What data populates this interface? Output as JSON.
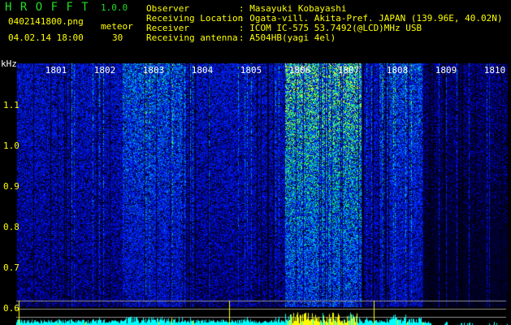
{
  "header": {
    "app_name": "H R O F F T",
    "version": "1.0.0",
    "filename": "0402141800.png",
    "datetime": "04.02.14 18:00",
    "meteor_label": "meteor",
    "meteor_count": "30"
  },
  "info": [
    {
      "label": "Observer",
      "value": ": Masayuki Kobayashi"
    },
    {
      "label": "Receiving Location",
      "value": ": Ogata-vill. Akita-Pref. JAPAN (139.96E, 40.02N)"
    },
    {
      "label": "Receiver",
      "value": ": ICOM IC-575 53.7492(@LCD)MHz USB"
    },
    {
      "label": "Receiving antenna",
      "value": ": A504HB(yagi 4el)"
    }
  ],
  "axis": {
    "y_unit": "kHz",
    "y_ticks": [
      "1.1",
      "1.0",
      "0.9",
      "0.8",
      "0.7",
      "0.6"
    ],
    "x_ticks": [
      "1801",
      "1802",
      "1803",
      "1804",
      "1805",
      "1806",
      "1807",
      "1808",
      "1809",
      "1810"
    ]
  },
  "colors": {
    "text": "#ffff00",
    "title": "#22dd22",
    "bars_low": "#00ffff",
    "bars_high": "#ffff00",
    "grid": "#909090"
  }
}
